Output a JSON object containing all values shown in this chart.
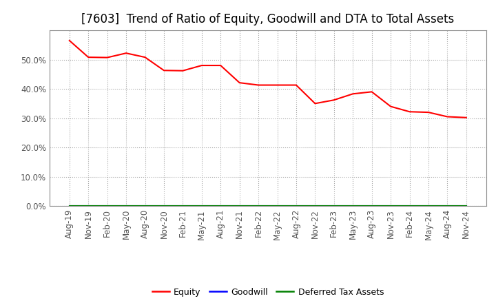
{
  "title": "[7603]  Trend of Ratio of Equity, Goodwill and DTA to Total Assets",
  "x_labels": [
    "Aug-19",
    "Nov-19",
    "Feb-20",
    "May-20",
    "Aug-20",
    "Nov-20",
    "Feb-21",
    "May-21",
    "Aug-21",
    "Nov-21",
    "Feb-22",
    "May-22",
    "Aug-22",
    "Nov-22",
    "Feb-23",
    "May-23",
    "Aug-23",
    "Nov-23",
    "Feb-24",
    "May-24",
    "Aug-24",
    "Nov-24"
  ],
  "equity": [
    0.565,
    0.508,
    0.507,
    0.522,
    0.508,
    0.463,
    0.462,
    0.48,
    0.48,
    0.421,
    0.413,
    0.413,
    0.413,
    0.35,
    0.362,
    0.383,
    0.39,
    0.34,
    0.322,
    0.32,
    0.305,
    0.302
  ],
  "goodwill": [
    0,
    0,
    0,
    0,
    0,
    0,
    0,
    0,
    0,
    0,
    0,
    0,
    0,
    0,
    0,
    0,
    0,
    0,
    0,
    0,
    0,
    0
  ],
  "dta": [
    0,
    0,
    0,
    0,
    0,
    0,
    0,
    0,
    0,
    0,
    0,
    0,
    0,
    0,
    0,
    0,
    0,
    0,
    0,
    0,
    0,
    0
  ],
  "equity_color": "#ff0000",
  "goodwill_color": "#0000ff",
  "dta_color": "#008000",
  "ylim_min": 0.0,
  "ylim_max": 0.6,
  "yticks": [
    0.0,
    0.1,
    0.2,
    0.3,
    0.4,
    0.5
  ],
  "background_color": "#ffffff",
  "plot_bg_color": "#ffffff",
  "grid_color": "#aaaaaa",
  "title_fontsize": 12,
  "tick_fontsize": 8.5,
  "legend_labels": [
    "Equity",
    "Goodwill",
    "Deferred Tax Assets"
  ],
  "legend_colors": [
    "#ff0000",
    "#0000ff",
    "#008000"
  ]
}
